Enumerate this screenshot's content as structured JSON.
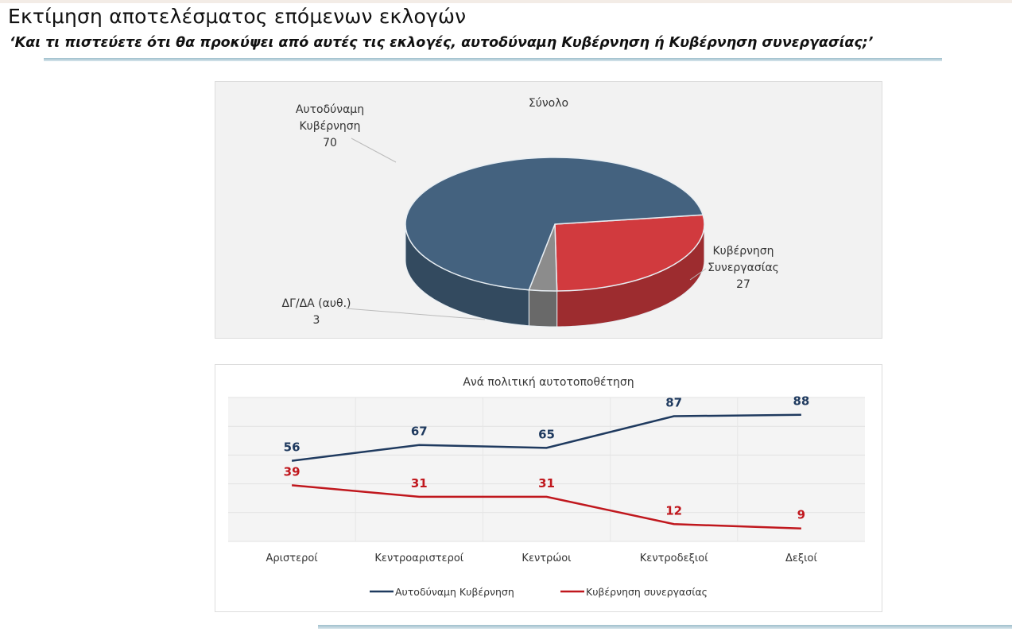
{
  "header": {
    "title": "Εκτίμηση αποτελέσματος επόμενων εκλογών",
    "subtitle": "‘Και τι πιστεύετε ότι θα προκύψει από αυτές τις εκλογές, αυτοδύναμη Κυβέρνηση ή Κυβέρνηση συνεργασίας;’"
  },
  "chart_data": [
    {
      "type": "pie",
      "title": "Σύνολο",
      "slices": [
        {
          "label": [
            "Αυτοδύναμη",
            "Κυβέρνηση"
          ],
          "value": 70,
          "color": "#44627f"
        },
        {
          "label": [
            "Κυβέρνηση",
            "Συνεργασίας"
          ],
          "value": 27,
          "color": "#d13a3e"
        },
        {
          "label": [
            "ΔΓ/ΔΑ (αυθ.)"
          ],
          "value": 3,
          "color": "#8c8c8c"
        }
      ]
    },
    {
      "type": "line",
      "title": "Ανά πολιτική αυτοτοποθέτηση",
      "categories": [
        "Αριστεροί",
        "Κεντροαριστεροί",
        "Κεντρώοι",
        "Κεντροδεξιοί",
        "Δεξιοί"
      ],
      "ylim": [
        0,
        100
      ],
      "grid": true,
      "legend": "bottom",
      "series": [
        {
          "name": "Αυτοδύναμη Κυβέρνηση",
          "values": [
            56,
            67,
            65,
            87,
            88
          ],
          "color": "#1f3a5f"
        },
        {
          "name": "Κυβέρνηση συνεργασίας",
          "values": [
            39,
            31,
            31,
            12,
            9
          ],
          "color": "#c0171d"
        }
      ]
    }
  ]
}
